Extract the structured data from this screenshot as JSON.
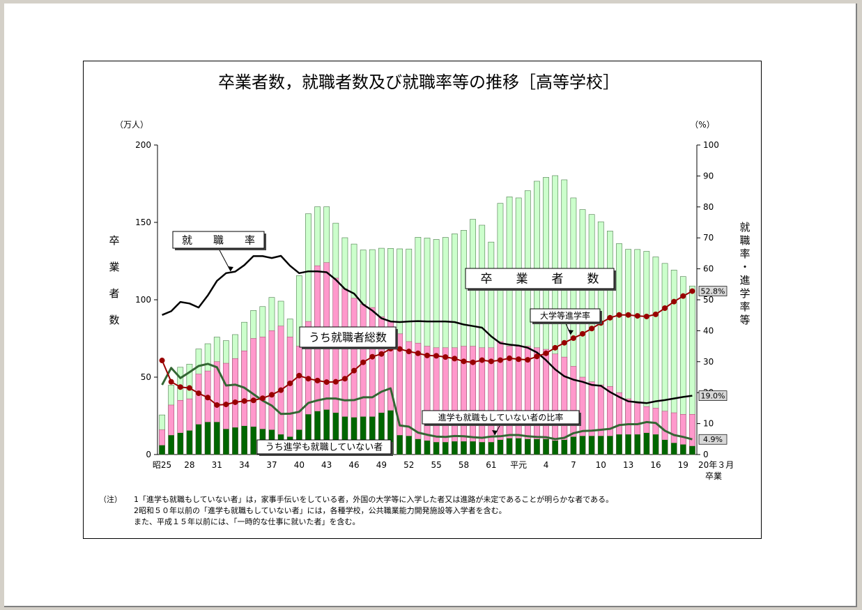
{
  "chart_data": {
    "type": "bar+line",
    "title": "卒業者数，就職者数及び就職率等の推移［高等学校］",
    "left_unit": "（万人）",
    "right_unit": "（%）",
    "left_axis_label": "卒業者数",
    "right_axis_label": "就職率・進学率等",
    "left_ylim": [
      0,
      200
    ],
    "right_ylim": [
      0,
      100
    ],
    "left_ticks": [
      "0",
      "50",
      "100",
      "150",
      "200"
    ],
    "right_ticks": [
      "0",
      "10",
      "20",
      "30",
      "40",
      "50",
      "60",
      "70",
      "80",
      "90",
      "100"
    ],
    "x_labels": [
      "昭25",
      "28",
      "31",
      "34",
      "37",
      "40",
      "43",
      "46",
      "49",
      "52",
      "55",
      "58",
      "61",
      "平元",
      "4",
      "7",
      "10",
      "13",
      "16",
      "19"
    ],
    "x_label_index": [
      0,
      3,
      6,
      9,
      12,
      15,
      18,
      21,
      24,
      27,
      30,
      33,
      36,
      39,
      42,
      45,
      48,
      51,
      54,
      57
    ],
    "x_end_label_1": "20年３月",
    "x_end_label_2": "卒業",
    "years": [
      "昭25",
      "昭26",
      "昭27",
      "昭28",
      "昭29",
      "昭30",
      "昭31",
      "昭32",
      "昭33",
      "昭34",
      "昭35",
      "昭36",
      "昭37",
      "昭38",
      "昭39",
      "昭40",
      "昭41",
      "昭42",
      "昭43",
      "昭44",
      "昭45",
      "昭46",
      "昭47",
      "昭48",
      "昭49",
      "昭50",
      "昭51",
      "昭52",
      "昭53",
      "昭54",
      "昭55",
      "昭56",
      "昭57",
      "昭58",
      "昭59",
      "昭60",
      "昭61",
      "昭62",
      "昭63",
      "平元",
      "平2",
      "平3",
      "平4",
      "平5",
      "平6",
      "平7",
      "平8",
      "平9",
      "平10",
      "平11",
      "平12",
      "平13",
      "平14",
      "平15",
      "平16",
      "平17",
      "平18",
      "平19",
      "平20"
    ],
    "graduates": [
      25.6,
      44.8,
      56.4,
      58.4,
      68.2,
      71.6,
      75.9,
      73.6,
      77.5,
      85.5,
      93.1,
      95.6,
      101.5,
      99.1,
      87.6,
      115.6,
      155.6,
      160.1,
      160.1,
      149.5,
      140.1,
      136,
      132.2,
      132.4,
      133.3,
      133.2,
      132.9,
      132.8,
      140.4,
      139.9,
      139,
      140.3,
      142.6,
      144.9,
      152,
      148.2,
      137.3,
      162.3,
      166.5,
      165.8,
      170.5,
      176.6,
      179.1,
      180.2,
      177.5,
      165.8,
      158.3,
      155.1,
      150.4,
      144.4,
      136.3,
      132.6,
      132.5,
      131.3,
      127.7,
      123.5,
      119.2,
      115,
      108.9
    ],
    "employed": [
      16,
      32,
      35,
      36,
      52,
      54,
      60,
      59,
      62,
      67,
      75,
      76,
      80,
      83,
      76,
      70,
      86,
      122,
      124,
      114,
      107,
      101,
      97,
      95,
      89,
      86,
      78,
      73,
      72,
      70,
      69,
      69,
      69,
      70,
      70,
      69,
      69,
      73,
      70,
      70,
      70,
      69,
      68,
      65,
      63,
      57,
      50,
      47,
      45,
      44,
      40,
      36,
      33,
      31,
      30,
      28,
      27,
      26,
      26
    ],
    "not_employed_or_studying": [
      6,
      12.5,
      14,
      15.5,
      19.5,
      21,
      21,
      16.5,
      17.5,
      18.5,
      18,
      16.5,
      16,
      13,
      11.5,
      16,
      26,
      28,
      29,
      27,
      24.5,
      24,
      24.5,
      24.5,
      27,
      28.5,
      12.5,
      12,
      10,
      9,
      8,
      8,
      8.5,
      8.5,
      8.5,
      8,
      8,
      9.5,
      10.5,
      10.5,
      10,
      10,
      10,
      9,
      9.5,
      11.5,
      12,
      12,
      12,
      12,
      13,
      13,
      13,
      14,
      13,
      9.5,
      7.5,
      6.5,
      5.5
    ],
    "employment_rate": [
      45.1,
      46.3,
      49.3,
      48.8,
      47.5,
      51.4,
      56.1,
      58.6,
      59.1,
      61.2,
      64.1,
      64.1,
      63.5,
      64.2,
      61.0,
      58.6,
      59.2,
      59.2,
      58.9,
      56.5,
      53.5,
      52.0,
      48.5,
      46.5,
      44.0,
      43.0,
      42.8,
      43.0,
      43.1,
      43.0,
      43.0,
      43.0,
      42.8,
      42.0,
      41.5,
      41.0,
      38.2,
      36.0,
      35.5,
      35.2,
      34.5,
      33.0,
      30.5,
      27.5,
      25.3,
      24.2,
      23.5,
      22.5,
      22.2,
      20.2,
      18.6,
      17.2,
      16.9,
      16.6,
      17.2,
      17.6,
      18.1,
      18.6,
      19.0
    ],
    "university_rate": [
      30.4,
      23.5,
      21.8,
      21.5,
      19.8,
      18.4,
      16.0,
      16.2,
      16.9,
      17.3,
      17.5,
      18.2,
      19.3,
      20.8,
      23.0,
      25.5,
      24.5,
      23.9,
      23.4,
      23.5,
      24.5,
      27.1,
      29.8,
      31.6,
      32.5,
      34.2,
      34.1,
      33.3,
      32.7,
      32.0,
      31.9,
      31.5,
      31.0,
      30.1,
      29.8,
      30.5,
      30.1,
      30.5,
      31.1,
      30.8,
      30.6,
      31.7,
      32.7,
      34.5,
      36.1,
      37.6,
      39.0,
      40.7,
      42.5,
      44.2,
      45.1,
      45.1,
      44.8,
      44.6,
      45.3,
      47.3,
      49.4,
      51.2,
      52.8
    ],
    "not_employed_ratio": [
      22.5,
      28.0,
      24.7,
      26.6,
      28.6,
      29.3,
      28.2,
      22.3,
      22.6,
      21.6,
      19.5,
      17.4,
      15.8,
      13.1,
      13.2,
      13.8,
      16.7,
      17.5,
      18.1,
      18.1,
      17.5,
      17.6,
      18.5,
      18.5,
      20.3,
      21.4,
      9.4,
      9.0,
      7.1,
      6.4,
      5.8,
      5.7,
      6.0,
      5.9,
      5.6,
      5.4,
      5.8,
      5.9,
      6.3,
      6.3,
      5.9,
      5.7,
      5.6,
      5.0,
      5.4,
      6.9,
      7.6,
      7.7,
      8.0,
      8.3,
      9.5,
      9.8,
      9.8,
      10.5,
      10.2,
      7.7,
      6.3,
      5.7,
      4.9
    ],
    "callouts": {
      "employment_rate": "就　　職　　率",
      "graduates": "卒　　業　　者　　数",
      "employed": "うち就職者総数",
      "university_rate": "大学等進学率",
      "not_employed_ratio": "進学も就職もしていない者の比率",
      "not_employed": "うち進学も就職していない者"
    },
    "end_value_labels": [
      "52.8%",
      "19.0%",
      "4.9%"
    ],
    "colors": {
      "graduates": "#ccffcc",
      "employed": "#ff99cc",
      "not_employed": "#006600",
      "employment_line": "#000000",
      "university_line": "#990000",
      "not_employed_line": "#336633"
    },
    "legend_position": "inline-callouts"
  },
  "notes": {
    "head": "（注）",
    "line1": "1「進学も就職もしていない者」は，家事手伝いをしている者，外国の大学等に入学した者又は進路が未定であることが明らかな者である。",
    "line2": "2昭和５０年以前の「進学も就職もしていない者」には，各種学校，公共職業能力開発施設等入学者を含む。",
    "line3": "また、平成１５年以前には、「一時的な仕事に就いた者」を含む。"
  }
}
